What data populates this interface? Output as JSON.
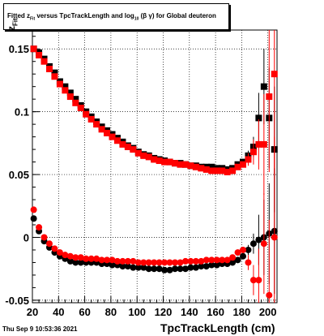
{
  "title": {
    "prefix": "Fitted  z",
    "sub": "Fit",
    "middle": "  versus TpcTrackLength and log",
    "sub2": "10",
    "suffix": " (β γ) for Global deuteron"
  },
  "xlabel": "TpcTrackLength (cm)",
  "ylabel": {
    "main": "z",
    "sub": "Fit"
  },
  "datestamp": "Thu Sep  9 10:53:36 2021",
  "chart_data": {
    "type": "scatter",
    "title": "Fitted z_Fit versus TpcTrackLength and log10 (β γ) for Global deuteron",
    "xlabel": "TpcTrackLength (cm)",
    "ylabel": "z_Fit",
    "xlim": [
      20,
      207
    ],
    "ylim": [
      -0.052,
      0.165
    ],
    "xticks": [
      20,
      40,
      60,
      80,
      100,
      120,
      140,
      160,
      180,
      200
    ],
    "yticks": [
      -0.05,
      0,
      0.05,
      0.1,
      0.15
    ],
    "grid": true,
    "series": [
      {
        "name": "",
        "marker": "square",
        "color": "#000000",
        "x": [
          21,
          25,
          29,
          33,
          37,
          41,
          45,
          49,
          53,
          57,
          61,
          65,
          69,
          73,
          77,
          81,
          85,
          89,
          93,
          97,
          101,
          105,
          109,
          113,
          117,
          121,
          125,
          129,
          133,
          137,
          141,
          145,
          149,
          153,
          157,
          161,
          165,
          169,
          173,
          177,
          181,
          185,
          189,
          193,
          197,
          201,
          205
        ],
        "y": [
          0.15,
          0.147,
          0.142,
          0.136,
          0.131,
          0.124,
          0.12,
          0.115,
          0.11,
          0.105,
          0.1,
          0.096,
          0.092,
          0.088,
          0.085,
          0.082,
          0.079,
          0.076,
          0.073,
          0.071,
          0.068,
          0.066,
          0.065,
          0.063,
          0.062,
          0.061,
          0.06,
          0.059,
          0.059,
          0.058,
          0.057,
          0.057,
          0.056,
          0.056,
          0.056,
          0.055,
          0.055,
          0.054,
          0.055,
          0.058,
          0.06,
          0.065,
          0.072,
          0.095,
          0.12,
          0.095,
          0.07
        ],
        "yerr": [
          0,
          0,
          0,
          0,
          0,
          0,
          0,
          0,
          0,
          0,
          0,
          0,
          0,
          0,
          0,
          0,
          0,
          0,
          0,
          0,
          0,
          0,
          0,
          0,
          0,
          0,
          0,
          0,
          0,
          0,
          0,
          0,
          0,
          0,
          0,
          0,
          0,
          0,
          0,
          0,
          0,
          0.004,
          0.008,
          0.02,
          0.03,
          0.04,
          0.05
        ]
      },
      {
        "name": "",
        "marker": "square",
        "color": "#ff0000",
        "x": [
          21,
          25,
          29,
          33,
          37,
          41,
          45,
          49,
          53,
          57,
          61,
          65,
          69,
          73,
          77,
          81,
          85,
          89,
          93,
          97,
          101,
          105,
          109,
          113,
          117,
          121,
          125,
          129,
          133,
          137,
          141,
          145,
          149,
          153,
          157,
          161,
          165,
          169,
          173,
          177,
          181,
          185,
          189,
          193,
          197,
          201,
          205
        ],
        "y": [
          0.15,
          0.145,
          0.14,
          0.134,
          0.128,
          0.122,
          0.117,
          0.112,
          0.107,
          0.103,
          0.098,
          0.094,
          0.09,
          0.086,
          0.083,
          0.08,
          0.077,
          0.074,
          0.072,
          0.07,
          0.067,
          0.065,
          0.064,
          0.062,
          0.061,
          0.06,
          0.06,
          0.059,
          0.058,
          0.058,
          0.057,
          0.056,
          0.055,
          0.054,
          0.053,
          0.053,
          0.053,
          0.052,
          0.053,
          0.056,
          0.058,
          0.062,
          0.068,
          0.074,
          0.074,
          0.112,
          0.13
        ],
        "yerr": [
          0,
          0,
          0,
          0,
          0,
          0,
          0,
          0,
          0,
          0,
          0,
          0,
          0,
          0,
          0,
          0,
          0,
          0,
          0,
          0,
          0,
          0,
          0,
          0,
          0,
          0,
          0,
          0,
          0,
          0,
          0,
          0,
          0,
          0,
          0,
          0,
          0,
          0,
          0,
          0,
          0,
          0.005,
          0.01,
          0.02,
          0.04,
          0.06,
          0.08
        ]
      },
      {
        "name": "",
        "marker": "circle",
        "color": "#000000",
        "x": [
          21,
          25,
          29,
          33,
          37,
          41,
          45,
          49,
          53,
          57,
          61,
          65,
          69,
          73,
          77,
          81,
          85,
          89,
          93,
          97,
          101,
          105,
          109,
          113,
          117,
          121,
          125,
          129,
          133,
          137,
          141,
          145,
          149,
          153,
          157,
          161,
          165,
          169,
          173,
          177,
          181,
          185,
          189,
          193,
          197,
          201,
          205
        ],
        "y": [
          0.015,
          0.005,
          -0.003,
          -0.008,
          -0.012,
          -0.015,
          -0.017,
          -0.019,
          -0.02,
          -0.02,
          -0.02,
          -0.02,
          -0.02,
          -0.021,
          -0.021,
          -0.022,
          -0.022,
          -0.023,
          -0.023,
          -0.024,
          -0.024,
          -0.024,
          -0.025,
          -0.025,
          -0.025,
          -0.026,
          -0.026,
          -0.025,
          -0.025,
          -0.025,
          -0.024,
          -0.024,
          -0.023,
          -0.023,
          -0.022,
          -0.022,
          -0.021,
          -0.021,
          -0.02,
          -0.018,
          -0.015,
          -0.01,
          -0.005,
          -0.002,
          0.0,
          0.003,
          0.005
        ],
        "yerr": [
          0,
          0,
          0,
          0,
          0,
          0,
          0,
          0,
          0,
          0,
          0,
          0,
          0,
          0,
          0,
          0,
          0,
          0,
          0,
          0,
          0,
          0,
          0,
          0,
          0,
          0,
          0,
          0,
          0,
          0,
          0,
          0,
          0,
          0,
          0,
          0,
          0,
          0,
          0,
          0,
          0,
          0.004,
          0.008,
          0.02,
          0.03,
          0.04,
          0.05
        ]
      },
      {
        "name": "",
        "marker": "circle",
        "color": "#ff0000",
        "x": [
          21,
          25,
          29,
          33,
          37,
          41,
          45,
          49,
          53,
          57,
          61,
          65,
          69,
          73,
          77,
          81,
          85,
          89,
          93,
          97,
          101,
          105,
          109,
          113,
          117,
          121,
          125,
          129,
          133,
          137,
          141,
          145,
          149,
          153,
          157,
          161,
          165,
          169,
          173,
          177,
          181,
          185,
          189,
          193,
          197,
          201,
          205
        ],
        "y": [
          0.022,
          0.008,
          0.0,
          -0.005,
          -0.009,
          -0.012,
          -0.014,
          -0.015,
          -0.016,
          -0.016,
          -0.017,
          -0.017,
          -0.017,
          -0.018,
          -0.018,
          -0.018,
          -0.019,
          -0.019,
          -0.019,
          -0.019,
          -0.02,
          -0.02,
          -0.02,
          -0.02,
          -0.02,
          -0.02,
          -0.02,
          -0.02,
          -0.02,
          -0.019,
          -0.019,
          -0.019,
          -0.019,
          -0.018,
          -0.018,
          -0.018,
          -0.018,
          -0.018,
          -0.016,
          -0.012,
          -0.01,
          -0.02,
          -0.034,
          -0.034,
          -0.005,
          -0.046,
          0.0
        ],
        "yerr": [
          0,
          0,
          0,
          0,
          0,
          0,
          0,
          0,
          0,
          0,
          0,
          0,
          0,
          0,
          0,
          0,
          0,
          0,
          0,
          0,
          0,
          0,
          0,
          0,
          0,
          0,
          0,
          0,
          0,
          0,
          0,
          0,
          0,
          0,
          0,
          0,
          0,
          0,
          0,
          0,
          0,
          0.006,
          0.012,
          0.025,
          0.04,
          0.06,
          0.08
        ]
      }
    ]
  }
}
